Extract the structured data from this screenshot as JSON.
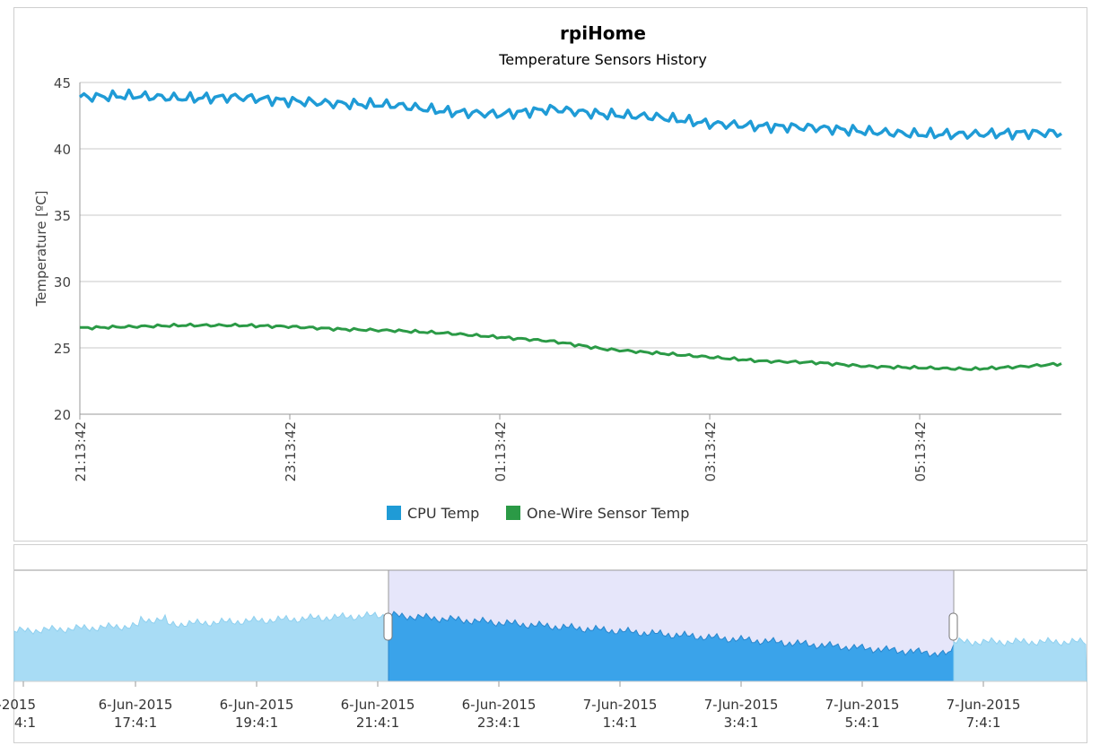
{
  "chart_data": {
    "type": "line",
    "title": "rpiHome",
    "subtitle": "Temperature Sensors History",
    "ylabel": "Temperature [ºC]",
    "xlabel": "",
    "ylim": [
      20,
      45
    ],
    "yticks": [
      "20",
      "25",
      "30",
      "35",
      "40",
      "45"
    ],
    "x_ticks": [
      "21:13:42",
      "23:13:42",
      "01:13:42",
      "03:13:42",
      "05:13:42"
    ],
    "x_range_hours": [
      0,
      9.35
    ],
    "grid": true,
    "legend_position": "bottom",
    "series": [
      {
        "name": "CPU Temp",
        "color": "#1f9bd6",
        "x_hours": [
          0,
          0.5,
          1,
          1.5,
          2,
          2.5,
          3,
          3.5,
          4,
          4.5,
          5,
          5.5,
          6,
          6.5,
          7,
          7.5,
          8,
          8.5,
          9,
          9.35
        ],
        "values": [
          43.9,
          44.0,
          43.8,
          43.9,
          43.6,
          43.4,
          43.3,
          42.8,
          42.6,
          43.0,
          42.6,
          42.4,
          41.9,
          41.7,
          41.6,
          41.3,
          41.1,
          41.1,
          41.2,
          41.2
        ]
      },
      {
        "name": "One-Wire Sensor Temp",
        "color": "#2b9a46",
        "x_hours": [
          0,
          0.5,
          1,
          1.5,
          2,
          2.5,
          3,
          3.5,
          4,
          4.5,
          5,
          5.5,
          6,
          6.5,
          7,
          7.5,
          8,
          8.5,
          9,
          9.35
        ],
        "values": [
          26.5,
          26.6,
          26.7,
          26.7,
          26.6,
          26.4,
          26.3,
          26.1,
          25.8,
          25.5,
          24.9,
          24.6,
          24.3,
          24.0,
          23.9,
          23.6,
          23.5,
          23.4,
          23.6,
          23.8
        ]
      }
    ]
  },
  "navigator": {
    "labels": [
      {
        "date": "-2015",
        "time": "4:1"
      },
      {
        "date": "6-Jun-2015",
        "time": "17:4:1"
      },
      {
        "date": "6-Jun-2015",
        "time": "19:4:1"
      },
      {
        "date": "6-Jun-2015",
        "time": "21:4:1"
      },
      {
        "date": "6-Jun-2015",
        "time": "23:4:1"
      },
      {
        "date": "7-Jun-2015",
        "time": "1:4:1"
      },
      {
        "date": "7-Jun-2015",
        "time": "3:4:1"
      },
      {
        "date": "7-Jun-2015",
        "time": "5:4:1"
      },
      {
        "date": "7-Jun-2015",
        "time": "7:4:1"
      }
    ],
    "area_color": "#a8dcf5",
    "selected_area_color": "#3aa3ea",
    "selection_color": "#e6e6fa"
  }
}
